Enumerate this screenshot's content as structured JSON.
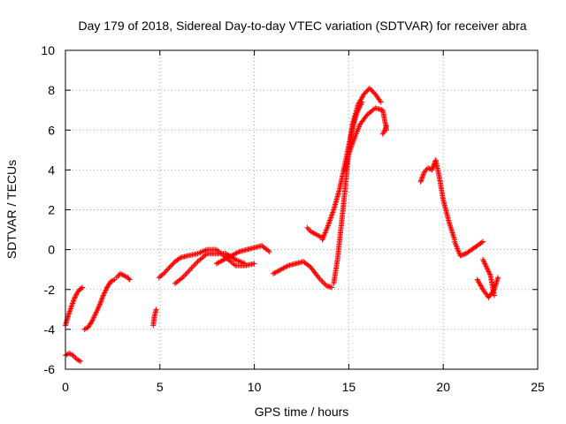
{
  "chart_data": {
    "type": "scatter",
    "title": "Day 179 of 2018, Sidereal Day-to-day VTEC variation (SDTVAR) for receiver abra",
    "xlabel": "GPS time / hours",
    "ylabel": "SDTVAR / TECUs",
    "xlim": [
      0,
      25
    ],
    "ylim": [
      -6,
      10
    ],
    "x_ticks": [
      0,
      5,
      10,
      15,
      20,
      25
    ],
    "y_ticks": [
      -6,
      -4,
      -2,
      0,
      2,
      4,
      6,
      8,
      10
    ],
    "grid": true,
    "marker": "+",
    "color": "#ff0000",
    "series": [
      {
        "name": "s1",
        "x": [
          0.0,
          0.15,
          0.3,
          0.45,
          0.6,
          0.75,
          0.9
        ],
        "y": [
          -3.8,
          -3.3,
          -2.9,
          -2.5,
          -2.2,
          -2.0,
          -1.9
        ]
      },
      {
        "name": "s2",
        "x": [
          0.0,
          0.2,
          0.4,
          0.6,
          0.8
        ],
        "y": [
          -5.3,
          -5.2,
          -5.3,
          -5.5,
          -5.6
        ]
      },
      {
        "name": "s3",
        "x": [
          1.0,
          1.2,
          1.4,
          1.6,
          1.8,
          2.0,
          2.2,
          2.4,
          2.6
        ],
        "y": [
          -4.0,
          -3.9,
          -3.6,
          -3.2,
          -2.8,
          -2.3,
          -1.9,
          -1.6,
          -1.5
        ]
      },
      {
        "name": "s4",
        "x": [
          2.7,
          2.9,
          3.1,
          3.3,
          3.4
        ],
        "y": [
          -1.4,
          -1.2,
          -1.3,
          -1.4,
          -1.5
        ]
      },
      {
        "name": "s5",
        "x": [
          4.65,
          4.7,
          4.75,
          4.8
        ],
        "y": [
          -3.8,
          -3.4,
          -3.2,
          -3.0
        ]
      },
      {
        "name": "s6",
        "x": [
          4.95,
          5.2,
          5.5,
          5.8,
          6.1,
          6.5,
          7.0,
          7.5,
          8.0,
          8.5,
          9.0,
          9.5,
          10.0
        ],
        "y": [
          -1.4,
          -1.2,
          -0.9,
          -0.6,
          -0.4,
          -0.3,
          -0.2,
          0.0,
          0.0,
          -0.4,
          -0.8,
          -0.8,
          -0.7
        ]
      },
      {
        "name": "s7",
        "x": [
          5.8,
          6.2,
          6.6,
          7.0,
          7.5,
          8.0,
          8.5,
          9.0,
          9.5
        ],
        "y": [
          -1.7,
          -1.4,
          -1.0,
          -0.6,
          -0.2,
          -0.2,
          -0.2,
          -0.5,
          -0.7
        ]
      },
      {
        "name": "s8",
        "x": [
          8.0,
          8.4,
          8.8,
          9.2,
          9.6,
          10.0,
          10.4,
          10.8
        ],
        "y": [
          -0.7,
          -0.5,
          -0.3,
          -0.1,
          0.0,
          0.1,
          0.2,
          -0.1
        ]
      },
      {
        "name": "s9",
        "x": [
          11.0,
          11.4,
          11.8,
          12.2,
          12.6,
          13.0,
          13.4,
          13.8,
          14.1
        ],
        "y": [
          -1.2,
          -1.0,
          -0.8,
          -0.7,
          -0.6,
          -0.9,
          -1.4,
          -1.8,
          -1.9
        ]
      },
      {
        "name": "s10",
        "x": [
          12.8,
          13.0,
          13.2,
          13.4,
          13.6
        ],
        "y": [
          1.1,
          0.9,
          0.8,
          0.7,
          0.6
        ]
      },
      {
        "name": "s11",
        "x": [
          13.6,
          13.9,
          14.2,
          14.5,
          14.8,
          15.1,
          15.4,
          15.7
        ],
        "y": [
          0.5,
          1.2,
          2.0,
          3.0,
          4.3,
          5.7,
          6.8,
          7.4
        ]
      },
      {
        "name": "s12",
        "x": [
          14.2,
          14.4,
          14.6,
          14.8,
          15.0,
          15.2,
          15.5,
          15.8,
          16.1,
          16.4,
          16.7
        ],
        "y": [
          -1.7,
          -0.5,
          1.2,
          3.0,
          5.0,
          6.3,
          7.3,
          7.8,
          8.1,
          7.8,
          7.4
        ]
      },
      {
        "name": "s13",
        "x": [
          14.8,
          15.0,
          15.3,
          15.6,
          16.0,
          16.4,
          16.8,
          17.0
        ],
        "y": [
          4.0,
          4.8,
          5.6,
          6.3,
          6.8,
          7.1,
          7.0,
          6.0
        ]
      },
      {
        "name": "s14",
        "x": [
          16.8,
          16.9,
          17.0
        ],
        "y": [
          5.8,
          6.0,
          6.2
        ]
      },
      {
        "name": "s15",
        "x": [
          18.8,
          19.0,
          19.2,
          19.4,
          19.6,
          19.8,
          20.0,
          20.3,
          20.6
        ],
        "y": [
          3.4,
          3.9,
          4.1,
          4.0,
          4.5,
          3.6,
          2.5,
          1.4,
          0.5
        ]
      },
      {
        "name": "s16",
        "x": [
          20.6,
          20.9,
          21.2,
          21.5,
          21.8,
          22.1
        ],
        "y": [
          0.4,
          -0.3,
          -0.2,
          0.0,
          0.2,
          0.4
        ]
      },
      {
        "name": "s17",
        "x": [
          21.8,
          22.1,
          22.4,
          22.7,
          22.9
        ],
        "y": [
          -1.5,
          -2.0,
          -2.4,
          -2.0,
          -1.4
        ]
      },
      {
        "name": "s18",
        "x": [
          22.1,
          22.3,
          22.5,
          22.7
        ],
        "y": [
          -0.5,
          -0.9,
          -1.3,
          -2.3
        ]
      }
    ]
  }
}
